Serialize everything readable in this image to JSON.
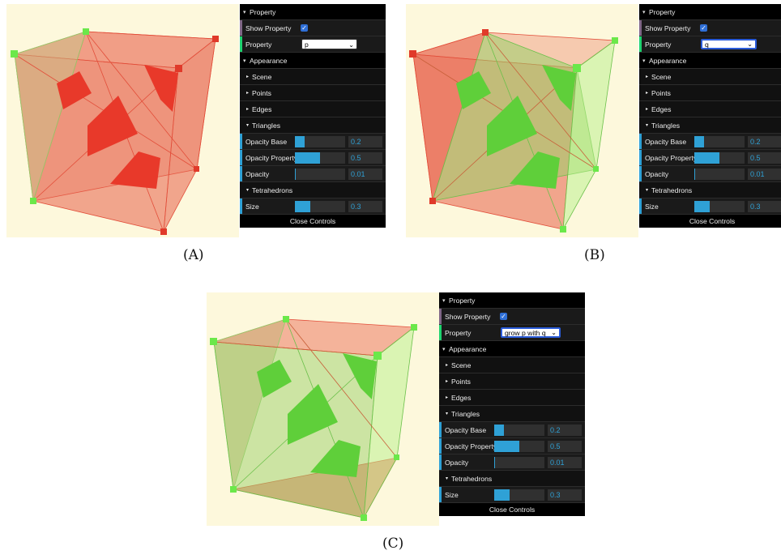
{
  "panels": [
    {
      "caption": "(A)",
      "property_value": "p",
      "colors": {
        "p1": "#e83a2a",
        "p2": "#e83a2a",
        "p3": "#e83a2a",
        "p4": "#e83a2a"
      }
    },
    {
      "caption": "(B)",
      "property_value": "q",
      "colors": {
        "p1": "#5fd43a",
        "p2": "#5fd43a",
        "p3": "#5fd43a",
        "p4": "#5fd43a"
      }
    },
    {
      "caption": "(C)",
      "property_value": "grow p with q",
      "colors": {
        "p1": "#5fd43a",
        "p2": "#5fd43a",
        "p3": "#5fd43a",
        "p4": "#5fd43a"
      }
    }
  ],
  "gui": {
    "property_folder": "Property",
    "show_property": "Show Property",
    "property_label": "Property",
    "appearance_folder": "Appearance",
    "scene": "Scene",
    "points": "Points",
    "edges": "Edges",
    "triangles_folder": "Triangles",
    "opacity_base_label": "Opacity Base",
    "opacity_base_value": "0.2",
    "opacity_property_label": "Opacity Property",
    "opacity_property_value": "0.5",
    "opacity_label": "Opacity",
    "opacity_value": "0.01",
    "tetrahedrons_folder": "Tetrahedrons",
    "size_label": "Size",
    "size_value": "0.3",
    "close_controls": "Close Controls"
  },
  "slider_levels": {
    "opacity_base": 0.2,
    "opacity_property": 0.5,
    "opacity": 0.01,
    "size": 0.3
  },
  "scene_colors": {
    "red": "#e8604a",
    "green": "#6be84a",
    "bg": "#fdf8dc",
    "gui_bg": "#1a1a1a",
    "accent": "#2fa1d6"
  }
}
